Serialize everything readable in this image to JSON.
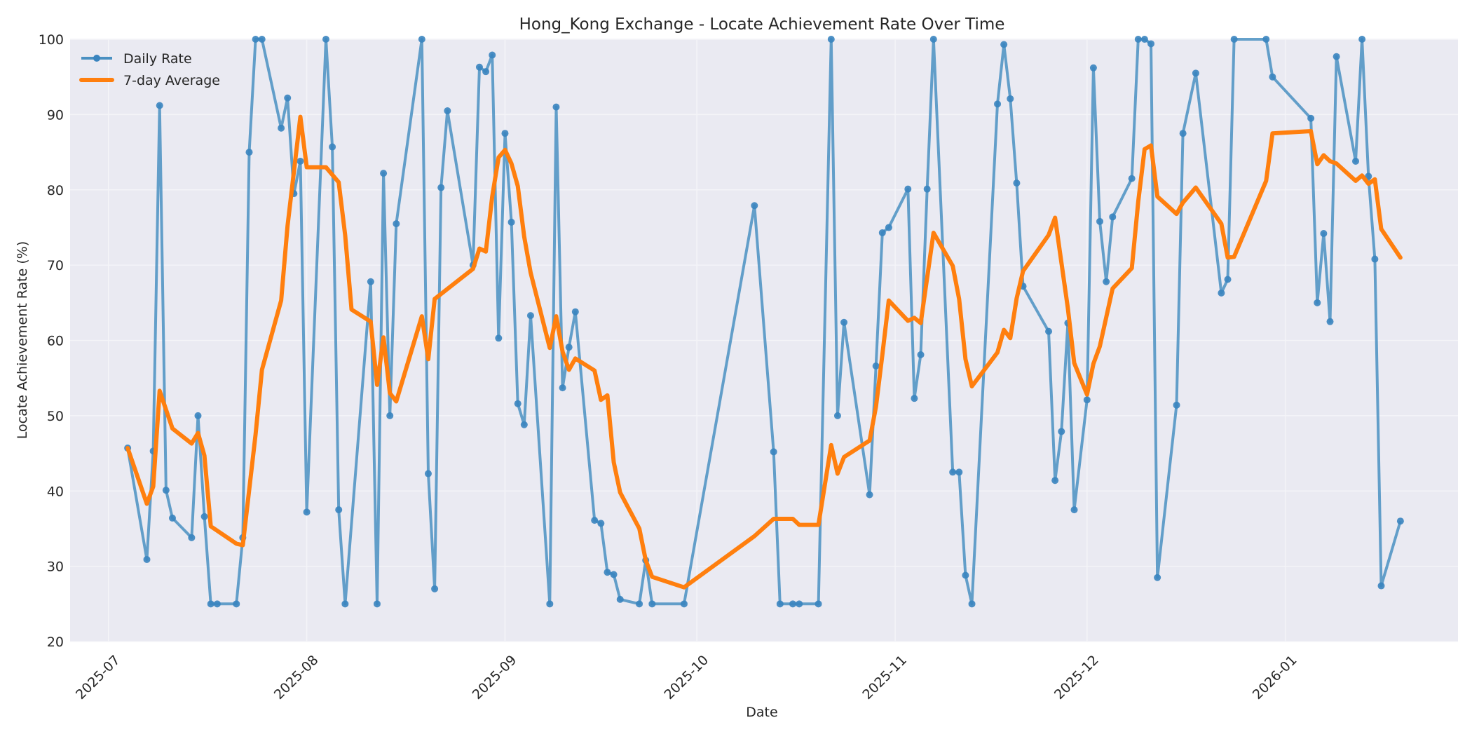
{
  "chart": {
    "title": "Hong_Kong Exchange - Locate Achievement Rate Over Time",
    "xlabel": "Date",
    "ylabel": "Locate Achievement Rate (%)",
    "legend": {
      "daily_label": "Daily Rate",
      "avg_label": "7-day Average"
    },
    "colors": {
      "daily": "#4a90c2",
      "daily_marker": "#3a84bf",
      "average": "#ff7f0e",
      "plot_bg": "#eaeaf2",
      "grid": "#f4f4f8",
      "page_bg": "#ffffff"
    }
  },
  "chart_data": {
    "type": "line",
    "title": "Hong_Kong Exchange - Locate Achievement Rate Over Time",
    "xlabel": "Date",
    "ylabel": "Locate Achievement Rate (%)",
    "ylim": [
      20,
      100
    ],
    "xlim": [
      "2025-06-25",
      "2026-01-28"
    ],
    "yticks": [
      20,
      30,
      40,
      50,
      60,
      70,
      80,
      90,
      100
    ],
    "xticks": [
      "2025-07",
      "2025-08",
      "2025-09",
      "2025-10",
      "2025-11",
      "2025-12",
      "2026-01"
    ],
    "xtick_dates": [
      "2025-07-01",
      "2025-08-01",
      "2025-09-01",
      "2025-10-01",
      "2025-11-01",
      "2025-12-01",
      "2026-01-01"
    ],
    "grid": true,
    "legend_position": "upper left",
    "series": [
      {
        "name": "Daily Rate",
        "style": "line-with-markers",
        "points": [
          [
            "2025-07-04",
            45.7
          ],
          [
            "2025-07-07",
            30.9
          ],
          [
            "2025-07-08",
            45.3
          ],
          [
            "2025-07-09",
            91.2
          ],
          [
            "2025-07-10",
            40.1
          ],
          [
            "2025-07-11",
            36.4
          ],
          [
            "2025-07-14",
            33.8
          ],
          [
            "2025-07-15",
            50.0
          ],
          [
            "2025-07-16",
            36.6
          ],
          [
            "2025-07-17",
            25.0
          ],
          [
            "2025-07-18",
            25.0
          ],
          [
            "2025-07-21",
            25.0
          ],
          [
            "2025-07-22",
            33.8
          ],
          [
            "2025-07-23",
            85.0
          ],
          [
            "2025-07-24",
            100.0
          ],
          [
            "2025-07-25",
            100.0
          ],
          [
            "2025-07-28",
            88.2
          ],
          [
            "2025-07-29",
            92.2
          ],
          [
            "2025-07-30",
            79.5
          ],
          [
            "2025-07-31",
            83.8
          ],
          [
            "2025-08-01",
            37.2
          ],
          [
            "2025-08-04",
            100.0
          ],
          [
            "2025-08-05",
            85.7
          ],
          [
            "2025-08-06",
            37.5
          ],
          [
            "2025-08-07",
            25.0
          ],
          [
            "2025-08-11",
            67.8
          ],
          [
            "2025-08-12",
            25.0
          ],
          [
            "2025-08-13",
            82.2
          ],
          [
            "2025-08-14",
            50.0
          ],
          [
            "2025-08-15",
            75.5
          ],
          [
            "2025-08-19",
            100.0
          ],
          [
            "2025-08-20",
            42.3
          ],
          [
            "2025-08-21",
            27.0
          ],
          [
            "2025-08-22",
            80.3
          ],
          [
            "2025-08-23",
            90.5
          ],
          [
            "2025-08-27",
            70.0
          ],
          [
            "2025-08-28",
            96.3
          ],
          [
            "2025-08-29",
            95.7
          ],
          [
            "2025-08-30",
            97.9
          ],
          [
            "2025-08-31",
            60.3
          ],
          [
            "2025-09-01",
            87.5
          ],
          [
            "2025-09-02",
            75.7
          ],
          [
            "2025-09-03",
            51.6
          ],
          [
            "2025-09-04",
            48.8
          ],
          [
            "2025-09-05",
            63.3
          ],
          [
            "2025-09-08",
            25.0
          ],
          [
            "2025-09-09",
            91.0
          ],
          [
            "2025-09-10",
            53.7
          ],
          [
            "2025-09-11",
            59.1
          ],
          [
            "2025-09-12",
            63.8
          ],
          [
            "2025-09-15",
            36.1
          ],
          [
            "2025-09-16",
            35.7
          ],
          [
            "2025-09-17",
            29.2
          ],
          [
            "2025-09-18",
            28.9
          ],
          [
            "2025-09-19",
            25.6
          ],
          [
            "2025-09-22",
            25.0
          ],
          [
            "2025-09-23",
            30.8
          ],
          [
            "2025-09-24",
            25.0
          ],
          [
            "2025-09-29",
            25.0
          ],
          [
            "2025-10-10",
            77.9
          ],
          [
            "2025-10-13",
            45.2
          ],
          [
            "2025-10-14",
            25.0
          ],
          [
            "2025-10-16",
            25.0
          ],
          [
            "2025-10-17",
            25.0
          ],
          [
            "2025-10-20",
            25.0
          ],
          [
            "2025-10-22",
            100.0
          ],
          [
            "2025-10-23",
            50.0
          ],
          [
            "2025-10-24",
            62.4
          ],
          [
            "2025-10-28",
            39.5
          ],
          [
            "2025-10-29",
            56.6
          ],
          [
            "2025-10-30",
            74.3
          ],
          [
            "2025-10-31",
            75.0
          ],
          [
            "2025-11-03",
            80.1
          ],
          [
            "2025-11-04",
            52.3
          ],
          [
            "2025-11-05",
            58.1
          ],
          [
            "2025-11-06",
            80.1
          ],
          [
            "2025-11-07",
            100.0
          ],
          [
            "2025-11-10",
            42.5
          ],
          [
            "2025-11-11",
            42.5
          ],
          [
            "2025-11-12",
            28.8
          ],
          [
            "2025-11-13",
            25.0
          ],
          [
            "2025-11-17",
            91.4
          ],
          [
            "2025-11-18",
            99.3
          ],
          [
            "2025-11-19",
            92.1
          ],
          [
            "2025-11-20",
            80.9
          ],
          [
            "2025-11-21",
            67.2
          ],
          [
            "2025-11-25",
            61.2
          ],
          [
            "2025-11-26",
            41.4
          ],
          [
            "2025-11-27",
            47.9
          ],
          [
            "2025-11-28",
            62.3
          ],
          [
            "2025-11-29",
            37.5
          ],
          [
            "2025-12-01",
            52.1
          ],
          [
            "2025-12-02",
            96.2
          ],
          [
            "2025-12-03",
            75.8
          ],
          [
            "2025-12-04",
            67.8
          ],
          [
            "2025-12-05",
            76.4
          ],
          [
            "2025-12-08",
            81.5
          ],
          [
            "2025-12-09",
            100.0
          ],
          [
            "2025-12-10",
            100.0
          ],
          [
            "2025-12-11",
            99.4
          ],
          [
            "2025-12-12",
            28.5
          ],
          [
            "2025-12-15",
            51.4
          ],
          [
            "2025-12-16",
            87.5
          ],
          [
            "2025-12-18",
            95.5
          ],
          [
            "2025-12-22",
            66.3
          ],
          [
            "2025-12-23",
            68.1
          ],
          [
            "2025-12-24",
            100.0
          ],
          [
            "2025-12-29",
            100.0
          ],
          [
            "2025-12-30",
            95.0
          ],
          [
            "2026-01-05",
            89.5
          ],
          [
            "2026-01-06",
            65.0
          ],
          [
            "2026-01-07",
            74.2
          ],
          [
            "2026-01-08",
            62.5
          ],
          [
            "2026-01-09",
            97.7
          ],
          [
            "2026-01-12",
            83.8
          ],
          [
            "2026-01-13",
            100.0
          ],
          [
            "2026-01-14",
            81.8
          ],
          [
            "2026-01-15",
            70.8
          ],
          [
            "2026-01-16",
            27.4
          ],
          [
            "2026-01-19",
            36.0
          ]
        ]
      },
      {
        "name": "7-day Average",
        "style": "line",
        "points": [
          [
            "2025-07-04",
            45.7
          ],
          [
            "2025-07-07",
            38.3
          ],
          [
            "2025-07-08",
            40.6
          ],
          [
            "2025-07-09",
            53.3
          ],
          [
            "2025-07-11",
            48.3
          ],
          [
            "2025-07-14",
            46.3
          ],
          [
            "2025-07-15",
            47.7
          ],
          [
            "2025-07-16",
            44.7
          ],
          [
            "2025-07-17",
            35.3
          ],
          [
            "2025-07-21",
            33.0
          ],
          [
            "2025-07-22",
            32.8
          ],
          [
            "2025-07-24",
            47.5
          ],
          [
            "2025-07-25",
            56.1
          ],
          [
            "2025-07-28",
            65.3
          ],
          [
            "2025-07-29",
            75.2
          ],
          [
            "2025-07-31",
            89.7
          ],
          [
            "2025-08-01",
            83.0
          ],
          [
            "2025-08-04",
            83.0
          ],
          [
            "2025-08-06",
            81.0
          ],
          [
            "2025-08-07",
            74.0
          ],
          [
            "2025-08-08",
            64.1
          ],
          [
            "2025-08-11",
            62.5
          ],
          [
            "2025-08-12",
            54.1
          ],
          [
            "2025-08-13",
            60.4
          ],
          [
            "2025-08-14",
            53.0
          ],
          [
            "2025-08-15",
            51.9
          ],
          [
            "2025-08-19",
            63.2
          ],
          [
            "2025-08-20",
            57.5
          ],
          [
            "2025-08-21",
            65.5
          ],
          [
            "2025-08-27",
            69.5
          ],
          [
            "2025-08-28",
            72.2
          ],
          [
            "2025-08-29",
            71.8
          ],
          [
            "2025-08-30",
            79.1
          ],
          [
            "2025-08-31",
            84.3
          ],
          [
            "2025-09-01",
            85.3
          ],
          [
            "2025-09-02",
            83.5
          ],
          [
            "2025-09-03",
            80.5
          ],
          [
            "2025-09-04",
            73.8
          ],
          [
            "2025-09-05",
            69.0
          ],
          [
            "2025-09-08",
            59.0
          ],
          [
            "2025-09-09",
            63.2
          ],
          [
            "2025-09-10",
            58.5
          ],
          [
            "2025-09-11",
            56.1
          ],
          [
            "2025-09-12",
            57.6
          ],
          [
            "2025-09-15",
            56.0
          ],
          [
            "2025-09-16",
            52.1
          ],
          [
            "2025-09-17",
            52.7
          ],
          [
            "2025-09-18",
            43.8
          ],
          [
            "2025-09-19",
            39.8
          ],
          [
            "2025-09-22",
            35.0
          ],
          [
            "2025-09-23",
            30.8
          ],
          [
            "2025-09-24",
            28.6
          ],
          [
            "2025-09-29",
            27.2
          ],
          [
            "2025-10-10",
            34.0
          ],
          [
            "2025-10-13",
            36.3
          ],
          [
            "2025-10-16",
            36.3
          ],
          [
            "2025-10-17",
            35.5
          ],
          [
            "2025-10-20",
            35.5
          ],
          [
            "2025-10-22",
            46.1
          ],
          [
            "2025-10-23",
            42.3
          ],
          [
            "2025-10-24",
            44.5
          ],
          [
            "2025-10-28",
            46.7
          ],
          [
            "2025-10-29",
            51.2
          ],
          [
            "2025-10-30",
            58.1
          ],
          [
            "2025-10-31",
            65.3
          ],
          [
            "2025-11-03",
            62.6
          ],
          [
            "2025-11-04",
            63.0
          ],
          [
            "2025-11-05",
            62.3
          ],
          [
            "2025-11-07",
            74.3
          ],
          [
            "2025-11-10",
            69.9
          ],
          [
            "2025-11-11",
            65.5
          ],
          [
            "2025-11-12",
            57.5
          ],
          [
            "2025-11-13",
            53.9
          ],
          [
            "2025-11-17",
            58.4
          ],
          [
            "2025-11-18",
            61.4
          ],
          [
            "2025-11-19",
            60.3
          ],
          [
            "2025-11-20",
            65.6
          ],
          [
            "2025-11-21",
            69.2
          ],
          [
            "2025-11-25",
            74.0
          ],
          [
            "2025-11-26",
            76.3
          ],
          [
            "2025-11-27",
            70.3
          ],
          [
            "2025-11-28",
            64.3
          ],
          [
            "2025-11-29",
            57.0
          ],
          [
            "2025-12-01",
            52.8
          ],
          [
            "2025-12-02",
            56.9
          ],
          [
            "2025-12-03",
            59.2
          ],
          [
            "2025-12-05",
            66.9
          ],
          [
            "2025-12-08",
            69.6
          ],
          [
            "2025-12-09",
            78.4
          ],
          [
            "2025-12-10",
            85.4
          ],
          [
            "2025-12-11",
            85.9
          ],
          [
            "2025-12-12",
            79.1
          ],
          [
            "2025-12-15",
            76.8
          ],
          [
            "2025-12-16",
            78.3
          ],
          [
            "2025-12-18",
            80.3
          ],
          [
            "2025-12-22",
            75.5
          ],
          [
            "2025-12-23",
            71.0
          ],
          [
            "2025-12-24",
            71.1
          ],
          [
            "2025-12-29",
            81.2
          ],
          [
            "2025-12-30",
            87.5
          ],
          [
            "2026-01-05",
            87.8
          ],
          [
            "2026-01-06",
            83.4
          ],
          [
            "2026-01-07",
            84.6
          ],
          [
            "2026-01-08",
            83.8
          ],
          [
            "2026-01-09",
            83.5
          ],
          [
            "2026-01-12",
            81.2
          ],
          [
            "2026-01-13",
            81.9
          ],
          [
            "2026-01-14",
            80.8
          ],
          [
            "2026-01-15",
            81.4
          ],
          [
            "2026-01-16",
            74.8
          ],
          [
            "2026-01-19",
            71.0
          ]
        ]
      }
    ]
  }
}
